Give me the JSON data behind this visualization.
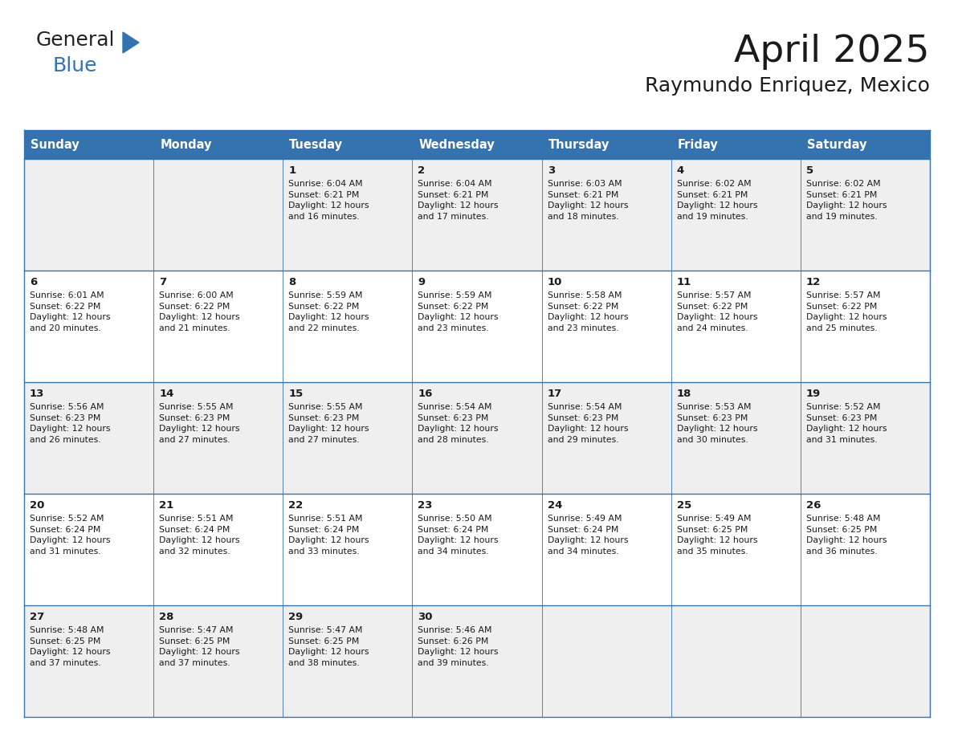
{
  "title": "April 2025",
  "subtitle": "Raymundo Enriquez, Mexico",
  "header_bg": "#3572B0",
  "header_text_color": "#FFFFFF",
  "cell_bg_odd": "#EFEFEF",
  "cell_bg_even": "#FFFFFF",
  "border_color": "#3572B0",
  "day_headers": [
    "Sunday",
    "Monday",
    "Tuesday",
    "Wednesday",
    "Thursday",
    "Friday",
    "Saturday"
  ],
  "weeks": [
    [
      {
        "day": "",
        "text": ""
      },
      {
        "day": "",
        "text": ""
      },
      {
        "day": "1",
        "text": "Sunrise: 6:04 AM\nSunset: 6:21 PM\nDaylight: 12 hours\nand 16 minutes."
      },
      {
        "day": "2",
        "text": "Sunrise: 6:04 AM\nSunset: 6:21 PM\nDaylight: 12 hours\nand 17 minutes."
      },
      {
        "day": "3",
        "text": "Sunrise: 6:03 AM\nSunset: 6:21 PM\nDaylight: 12 hours\nand 18 minutes."
      },
      {
        "day": "4",
        "text": "Sunrise: 6:02 AM\nSunset: 6:21 PM\nDaylight: 12 hours\nand 19 minutes."
      },
      {
        "day": "5",
        "text": "Sunrise: 6:02 AM\nSunset: 6:21 PM\nDaylight: 12 hours\nand 19 minutes."
      }
    ],
    [
      {
        "day": "6",
        "text": "Sunrise: 6:01 AM\nSunset: 6:22 PM\nDaylight: 12 hours\nand 20 minutes."
      },
      {
        "day": "7",
        "text": "Sunrise: 6:00 AM\nSunset: 6:22 PM\nDaylight: 12 hours\nand 21 minutes."
      },
      {
        "day": "8",
        "text": "Sunrise: 5:59 AM\nSunset: 6:22 PM\nDaylight: 12 hours\nand 22 minutes."
      },
      {
        "day": "9",
        "text": "Sunrise: 5:59 AM\nSunset: 6:22 PM\nDaylight: 12 hours\nand 23 minutes."
      },
      {
        "day": "10",
        "text": "Sunrise: 5:58 AM\nSunset: 6:22 PM\nDaylight: 12 hours\nand 23 minutes."
      },
      {
        "day": "11",
        "text": "Sunrise: 5:57 AM\nSunset: 6:22 PM\nDaylight: 12 hours\nand 24 minutes."
      },
      {
        "day": "12",
        "text": "Sunrise: 5:57 AM\nSunset: 6:22 PM\nDaylight: 12 hours\nand 25 minutes."
      }
    ],
    [
      {
        "day": "13",
        "text": "Sunrise: 5:56 AM\nSunset: 6:23 PM\nDaylight: 12 hours\nand 26 minutes."
      },
      {
        "day": "14",
        "text": "Sunrise: 5:55 AM\nSunset: 6:23 PM\nDaylight: 12 hours\nand 27 minutes."
      },
      {
        "day": "15",
        "text": "Sunrise: 5:55 AM\nSunset: 6:23 PM\nDaylight: 12 hours\nand 27 minutes."
      },
      {
        "day": "16",
        "text": "Sunrise: 5:54 AM\nSunset: 6:23 PM\nDaylight: 12 hours\nand 28 minutes."
      },
      {
        "day": "17",
        "text": "Sunrise: 5:54 AM\nSunset: 6:23 PM\nDaylight: 12 hours\nand 29 minutes."
      },
      {
        "day": "18",
        "text": "Sunrise: 5:53 AM\nSunset: 6:23 PM\nDaylight: 12 hours\nand 30 minutes."
      },
      {
        "day": "19",
        "text": "Sunrise: 5:52 AM\nSunset: 6:23 PM\nDaylight: 12 hours\nand 31 minutes."
      }
    ],
    [
      {
        "day": "20",
        "text": "Sunrise: 5:52 AM\nSunset: 6:24 PM\nDaylight: 12 hours\nand 31 minutes."
      },
      {
        "day": "21",
        "text": "Sunrise: 5:51 AM\nSunset: 6:24 PM\nDaylight: 12 hours\nand 32 minutes."
      },
      {
        "day": "22",
        "text": "Sunrise: 5:51 AM\nSunset: 6:24 PM\nDaylight: 12 hours\nand 33 minutes."
      },
      {
        "day": "23",
        "text": "Sunrise: 5:50 AM\nSunset: 6:24 PM\nDaylight: 12 hours\nand 34 minutes."
      },
      {
        "day": "24",
        "text": "Sunrise: 5:49 AM\nSunset: 6:24 PM\nDaylight: 12 hours\nand 34 minutes."
      },
      {
        "day": "25",
        "text": "Sunrise: 5:49 AM\nSunset: 6:25 PM\nDaylight: 12 hours\nand 35 minutes."
      },
      {
        "day": "26",
        "text": "Sunrise: 5:48 AM\nSunset: 6:25 PM\nDaylight: 12 hours\nand 36 minutes."
      }
    ],
    [
      {
        "day": "27",
        "text": "Sunrise: 5:48 AM\nSunset: 6:25 PM\nDaylight: 12 hours\nand 37 minutes."
      },
      {
        "day": "28",
        "text": "Sunrise: 5:47 AM\nSunset: 6:25 PM\nDaylight: 12 hours\nand 37 minutes."
      },
      {
        "day": "29",
        "text": "Sunrise: 5:47 AM\nSunset: 6:25 PM\nDaylight: 12 hours\nand 38 minutes."
      },
      {
        "day": "30",
        "text": "Sunrise: 5:46 AM\nSunset: 6:26 PM\nDaylight: 12 hours\nand 39 minutes."
      },
      {
        "day": "",
        "text": ""
      },
      {
        "day": "",
        "text": ""
      },
      {
        "day": "",
        "text": ""
      }
    ]
  ],
  "logo_general_color": "#222222",
  "logo_blue_color": "#3572B0",
  "logo_triangle_color": "#3572B0",
  "title_fontsize": 34,
  "subtitle_fontsize": 18,
  "header_fontsize": 10.5,
  "day_num_fontsize": 9.5,
  "cell_text_fontsize": 7.8,
  "fig_width": 11.88,
  "fig_height": 9.18,
  "dpi": 100
}
